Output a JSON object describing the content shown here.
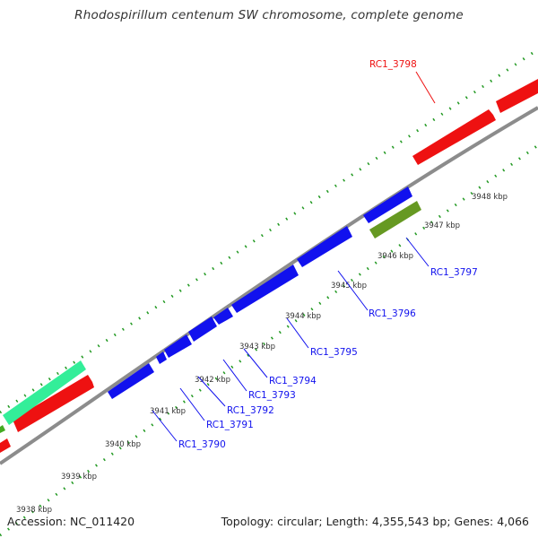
{
  "title": "Rhodospirillum centenum SW chromosome, complete genome",
  "footer": {
    "accession": "Accession: NC_011420",
    "summary": "Topology: circular; Length: 4,355,543 bp; Genes: 4,066"
  },
  "colors": {
    "forward_gene": "#ee1111",
    "reverse_gene": "#1111ee",
    "rna_gene": "#33ee99",
    "other_feature": "#669922",
    "backbone": "#888888",
    "tick": "#228822"
  },
  "position_labels": [
    "3938 kbp",
    "3939 kbp",
    "3940 kbp",
    "3941 kbp",
    "3942 kbp",
    "3943 kbp",
    "3944 kbp",
    "3945 kbp",
    "3946 kbp",
    "3947 kbp",
    "3948 kbp"
  ],
  "gene_labels": [
    "RC1_3798",
    "RC1_3797",
    "RC1_3796",
    "RC1_3795",
    "RC1_3794",
    "RC1_3793",
    "RC1_3792",
    "RC1_3791",
    "RC1_3790"
  ]
}
